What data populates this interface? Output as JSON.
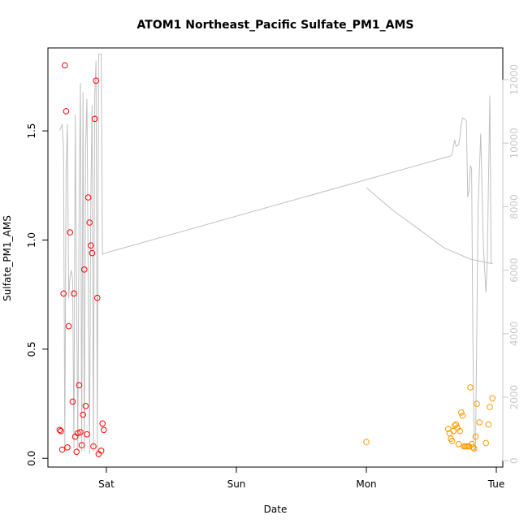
{
  "chart_data": {
    "type": "scatter",
    "title": "ATOM1 Northeast_Pacific Sulfate_PM1_AMS",
    "xlabel": "Date",
    "ylabel": "Sulfate_PM1_AMS",
    "xlim": [
      -0.45,
      3.05
    ],
    "ylim": [
      -0.04,
      1.88
    ],
    "x_ticks": [
      {
        "value": 0,
        "label": "Sat"
      },
      {
        "value": 1,
        "label": "Sun"
      },
      {
        "value": 2,
        "label": "Mon"
      },
      {
        "value": 3,
        "label": "Tue"
      }
    ],
    "y_ticks": [
      {
        "value": 0.0,
        "label": "0.0"
      },
      {
        "value": 0.5,
        "label": "0.5"
      },
      {
        "value": 1.0,
        "label": "1.0"
      },
      {
        "value": 1.5,
        "label": "1.5"
      }
    ],
    "y2lim": [
      -200,
      13000
    ],
    "y2_ticks": [
      {
        "value": 0,
        "label": "0"
      },
      {
        "value": 2000,
        "label": "2000"
      },
      {
        "value": 4000,
        "label": "4000"
      },
      {
        "value": 6000,
        "label": "6000"
      },
      {
        "value": 8000,
        "label": "8000"
      },
      {
        "value": 10000,
        "label": "10000"
      },
      {
        "value": 12000,
        "label": "12000"
      }
    ],
    "grid": false,
    "series": [
      {
        "color": "#ff0000",
        "marker": "open-circle",
        "points": [
          [
            -0.36,
            0.13
          ],
          [
            -0.35,
            0.125
          ],
          [
            -0.34,
            0.04
          ],
          [
            -0.33,
            0.755
          ],
          [
            -0.32,
            1.8
          ],
          [
            -0.31,
            1.59
          ],
          [
            -0.3,
            0.05
          ],
          [
            -0.29,
            0.605
          ],
          [
            -0.28,
            1.035
          ],
          [
            -0.26,
            0.26
          ],
          [
            -0.25,
            0.755
          ],
          [
            -0.24,
            0.1
          ],
          [
            -0.23,
            0.03
          ],
          [
            -0.22,
            0.115
          ],
          [
            -0.21,
            0.335
          ],
          [
            -0.2,
            0.12
          ],
          [
            -0.19,
            0.06
          ],
          [
            -0.18,
            0.2
          ],
          [
            -0.17,
            0.865
          ],
          [
            -0.16,
            0.24
          ],
          [
            -0.15,
            0.11
          ],
          [
            -0.14,
            1.195
          ],
          [
            -0.13,
            1.08
          ],
          [
            -0.12,
            0.975
          ],
          [
            -0.11,
            0.94
          ],
          [
            -0.1,
            0.055
          ],
          [
            -0.09,
            1.555
          ],
          [
            -0.08,
            1.73
          ],
          [
            -0.07,
            0.735
          ],
          [
            -0.06,
            0.02
          ],
          [
            -0.04,
            0.035
          ],
          [
            -0.03,
            0.16
          ],
          [
            -0.02,
            0.13
          ]
        ]
      },
      {
        "color": "#ff9900",
        "marker": "open-circle",
        "points": [
          [
            2.0,
            0.075
          ],
          [
            2.63,
            0.135
          ],
          [
            2.64,
            0.115
          ],
          [
            2.65,
            0.09
          ],
          [
            2.66,
            0.08
          ],
          [
            2.67,
            0.125
          ],
          [
            2.68,
            0.15
          ],
          [
            2.69,
            0.155
          ],
          [
            2.7,
            0.14
          ],
          [
            2.71,
            0.065
          ],
          [
            2.72,
            0.125
          ],
          [
            2.73,
            0.21
          ],
          [
            2.74,
            0.195
          ],
          [
            2.75,
            0.055
          ],
          [
            2.76,
            0.055
          ],
          [
            2.77,
            0.055
          ],
          [
            2.78,
            0.055
          ],
          [
            2.79,
            0.055
          ],
          [
            2.8,
            0.325
          ],
          [
            2.81,
            0.065
          ],
          [
            2.82,
            0.05
          ],
          [
            2.83,
            0.045
          ],
          [
            2.84,
            0.1
          ],
          [
            2.85,
            0.25
          ],
          [
            2.87,
            0.165
          ],
          [
            2.92,
            0.07
          ],
          [
            2.94,
            0.155
          ],
          [
            2.95,
            0.235
          ],
          [
            2.97,
            0.275
          ]
        ]
      }
    ],
    "line_series": {
      "axis": "right",
      "color": "#c0c0c0",
      "segments": [
        [
          [
            -0.36,
            10400
          ],
          [
            -0.34,
            10600
          ],
          [
            -0.33,
            9800
          ],
          [
            -0.32,
            400
          ],
          [
            -0.31,
            9200
          ],
          [
            -0.3,
            10600
          ],
          [
            -0.29,
            5100
          ],
          [
            -0.28,
            5800
          ],
          [
            -0.27,
            6000
          ],
          [
            -0.26,
            5700
          ],
          [
            -0.25,
            400
          ],
          [
            -0.24,
            10900
          ],
          [
            -0.22,
            300
          ],
          [
            -0.21,
            8000
          ],
          [
            -0.2,
            11900
          ],
          [
            -0.19,
            300
          ],
          [
            -0.18,
            11600
          ],
          [
            -0.17,
            300
          ],
          [
            -0.16,
            9900
          ],
          [
            -0.15,
            11400
          ],
          [
            -0.13,
            200
          ],
          [
            -0.12,
            8300
          ],
          [
            -0.11,
            11200
          ],
          [
            -0.1,
            300
          ],
          [
            -0.09,
            11500
          ],
          [
            -0.08,
            12600
          ],
          [
            -0.07,
            200
          ],
          [
            -0.06,
            12800
          ],
          [
            -0.04,
            12800
          ],
          [
            -0.03,
            6500
          ],
          [
            0.0,
            6550
          ],
          [
            2.65,
            9600
          ],
          [
            2.66,
            9650
          ],
          [
            2.67,
            9900
          ],
          [
            2.68,
            10100
          ],
          [
            2.69,
            9900
          ],
          [
            2.71,
            9950
          ],
          [
            2.72,
            10200
          ],
          [
            2.73,
            10600
          ],
          [
            2.74,
            10800
          ],
          [
            2.76,
            10750
          ],
          [
            2.77,
            10700
          ],
          [
            2.78,
            8300
          ],
          [
            2.79,
            8500
          ],
          [
            2.8,
            9300
          ],
          [
            2.81,
            9200
          ],
          [
            2.82,
            3700
          ],
          [
            2.83,
            400
          ],
          [
            2.84,
            300
          ],
          [
            2.86,
            8000
          ],
          [
            2.88,
            10300
          ],
          [
            2.9,
            6800
          ],
          [
            2.92,
            5300
          ],
          [
            2.93,
            6200
          ],
          [
            2.95,
            11500
          ],
          [
            2.96,
            6250
          ],
          [
            2.97,
            6200
          ]
        ],
        [
          [
            2.0,
            8600
          ],
          [
            2.2,
            7900
          ],
          [
            2.4,
            7300
          ],
          [
            2.6,
            6700
          ],
          [
            2.8,
            6350
          ],
          [
            2.97,
            6200
          ]
        ]
      ]
    }
  }
}
